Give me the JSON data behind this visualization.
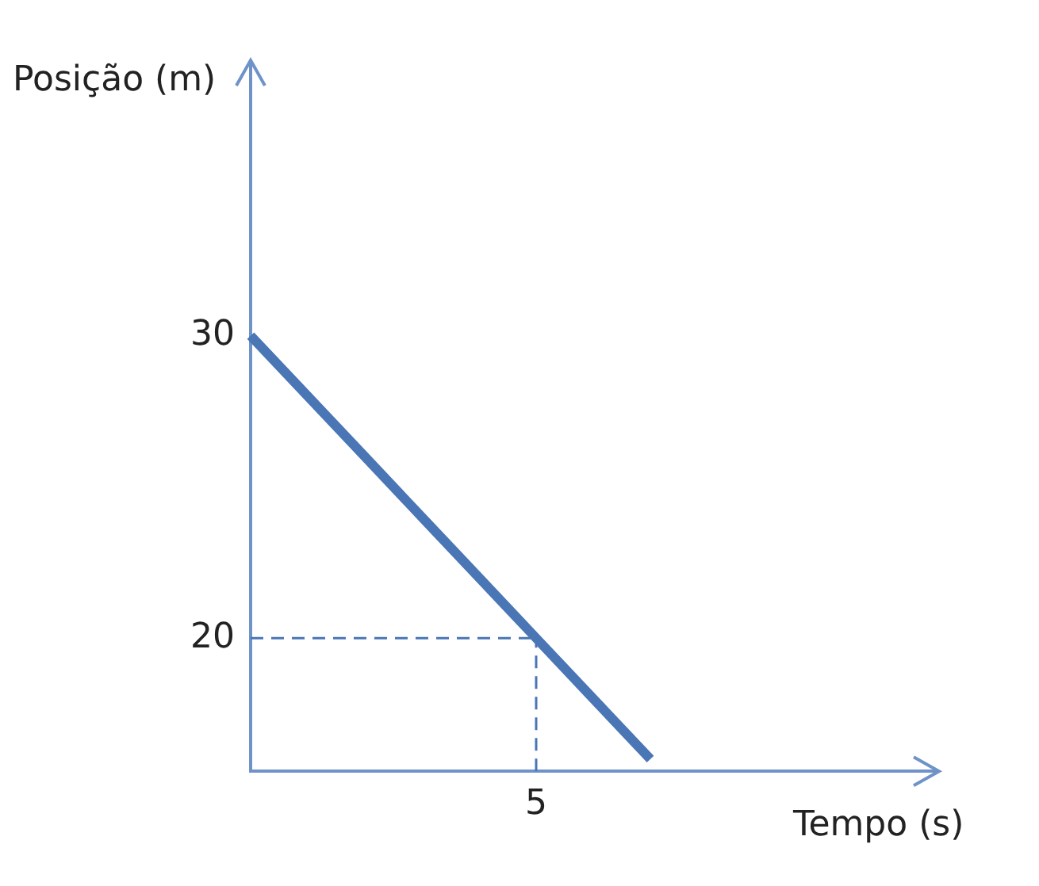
{
  "chart_data": {
    "type": "line",
    "xlabel": "Tempo (s)",
    "ylabel": "Posição (m)",
    "categories": [
      null,
      null,
      null,
      null,
      null,
      "5",
      null,
      null,
      null,
      null,
      null,
      null,
      null
    ],
    "series": [
      {
        "color": "#4a76b5",
        "values": [
          30,
          28,
          26,
          24,
          22,
          20,
          18,
          16,
          null,
          null,
          null,
          null,
          null
        ]
      }
    ],
    "ylim": [
      15.6,
      39
    ],
    "yticks": [
      20,
      30
    ],
    "ref_lines": [
      {
        "axis": "x",
        "value": "5",
        "color": "#4a76b5",
        "line_style": "dashed"
      },
      {
        "axis": "y",
        "value": 20,
        "color": "#4a76b5",
        "line_style": "dashed"
      }
    ],
    "grid": false,
    "legend": false,
    "marker": "none",
    "line_style": "solid"
  }
}
